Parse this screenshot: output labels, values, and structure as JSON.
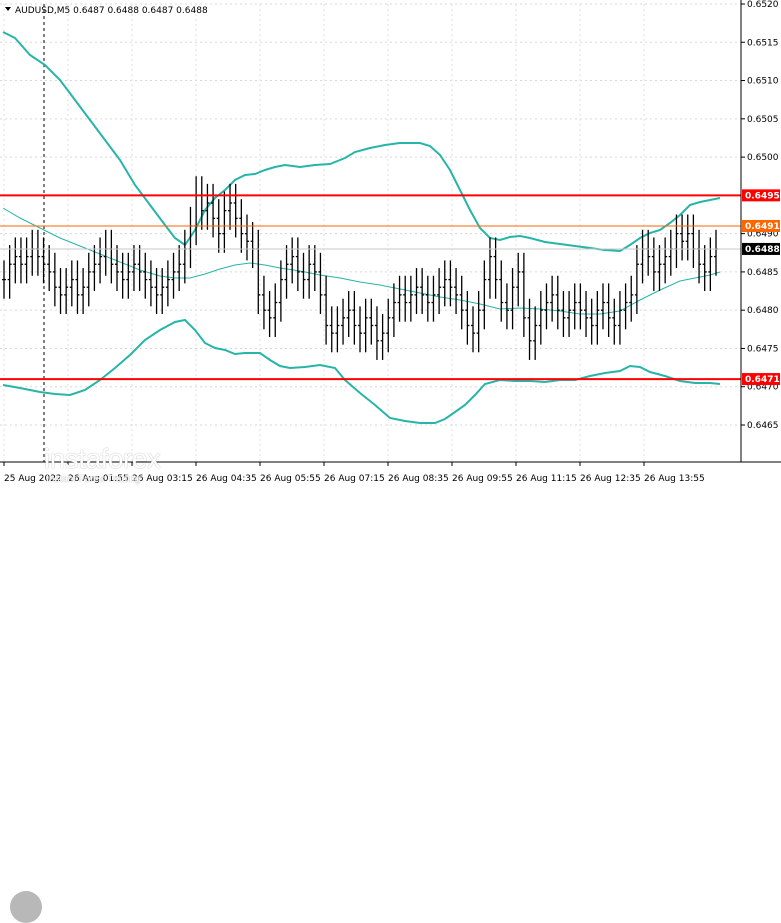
{
  "symbol_info": "AUDUSD,M5  0.6487 0.6488 0.6487 0.6488",
  "logo": {
    "name": "instaforex",
    "tagline": "Instant Forex Trading"
  },
  "price_axis": {
    "labels": [
      "0.6520",
      "0.6515",
      "0.6510",
      "0.6505",
      "0.6500",
      "0.6490",
      "0.6485",
      "0.6480",
      "0.6475",
      "0.6470",
      "0.6465"
    ],
    "values": [
      0.652,
      0.6515,
      0.651,
      0.6505,
      0.65,
      0.649,
      0.6485,
      0.648,
      0.6475,
      0.647,
      0.6465
    ]
  },
  "time_axis": {
    "labels": [
      "25 Aug 2022",
      "26 Aug 01:55",
      "26 Aug 03:15",
      "26 Aug 04:35",
      "26 Aug 05:55",
      "26 Aug 07:15",
      "26 Aug 08:35",
      "26 Aug 09:55",
      "26 Aug 11:15",
      "26 Aug 12:35",
      "26 Aug 13:55"
    ]
  },
  "levels": [
    {
      "label": "0.6495",
      "price": 0.6495,
      "color": "#ff0000",
      "kind": "resistance"
    },
    {
      "label": "0.6491",
      "price": 0.6491,
      "color": "#ff6600",
      "kind": "level"
    },
    {
      "label": "0.6471",
      "price": 0.6471,
      "color": "#ff0000",
      "kind": "support"
    }
  ],
  "current_price": {
    "label": "0.6488",
    "price": 0.6488,
    "color": "#000000"
  },
  "colors": {
    "bollinger": "#26b5a8",
    "ma": "#26b5a8",
    "candle": "#000000",
    "grid": "#c0c0c0",
    "session_line": "#000000"
  },
  "chart_data": {
    "type": "line",
    "title": "AUDUSD,M5",
    "ylim": [
      0.6462,
      0.6521
    ],
    "series": [
      {
        "name": "AUDUSD",
        "values": [
          0.6484,
          0.6486,
          0.6487,
          0.6486,
          0.6487,
          0.6488,
          0.6487,
          0.6486,
          0.6485,
          0.6483,
          0.6482,
          0.6483,
          0.6484,
          0.6482,
          0.6483,
          0.6485,
          0.6486,
          0.6487,
          0.6488,
          0.6486,
          0.6485,
          0.6484,
          0.6485,
          0.6486,
          0.6485,
          0.6484,
          0.6483,
          0.6482,
          0.6483,
          0.6484,
          0.6485,
          0.6486,
          0.6488,
          0.6491,
          0.6495,
          0.6493,
          0.6494,
          0.6492,
          0.649,
          0.6493,
          0.6494,
          0.6492,
          0.649,
          0.6489,
          0.6488,
          0.6482,
          0.648,
          0.6479,
          0.6481,
          0.6484,
          0.6486,
          0.6487,
          0.6485,
          0.6484,
          0.6486,
          0.6485,
          0.6482,
          0.6478,
          0.6477,
          0.6478,
          0.6479,
          0.648,
          0.6478,
          0.6477,
          0.6479,
          0.6478,
          0.6476,
          0.6477,
          0.6479,
          0.6481,
          0.6482,
          0.6481,
          0.6482,
          0.6483,
          0.6482,
          0.6481,
          0.6482,
          0.6483,
          0.6484,
          0.6483,
          0.6482,
          0.648,
          0.6478,
          0.6477,
          0.648,
          0.6484,
          0.6487,
          0.6484,
          0.6481,
          0.648,
          0.6483,
          0.6485,
          0.6479,
          0.6476,
          0.6478,
          0.648,
          0.6481,
          0.6482,
          0.648,
          0.6479,
          0.648,
          0.6481,
          0.648,
          0.6479,
          0.6478,
          0.648,
          0.6481,
          0.6479,
          0.6478,
          0.648,
          0.6481,
          0.6482,
          0.6486,
          0.6488,
          0.6487,
          0.6485,
          0.6486,
          0.6487,
          0.6488,
          0.649,
          0.6489,
          0.649,
          0.6488,
          0.6486,
          0.6485,
          0.6487,
          0.6488
        ]
      }
    ]
  }
}
